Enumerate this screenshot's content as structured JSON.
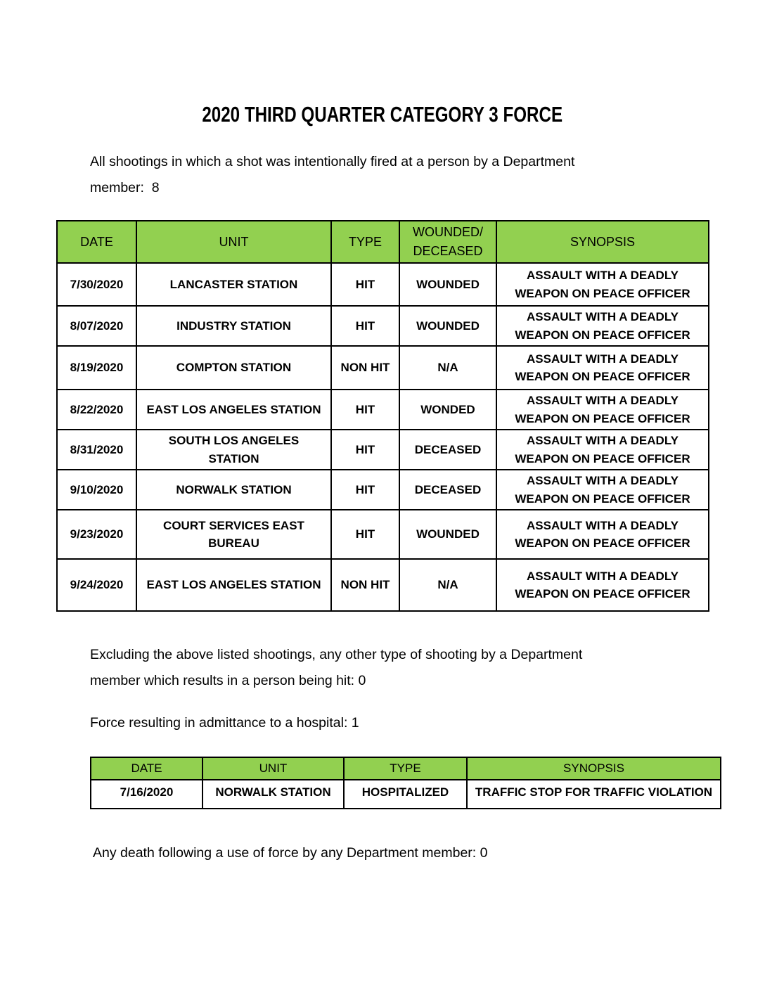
{
  "document": {
    "title": "2020 THIRD QUARTER CATEGORY 3 FORCE",
    "intro": "All shootings in which a shot was intentionally fired at a person by a Department\nmember:  8",
    "excluding_note": "Excluding the above listed shootings, any other type of shooting by a Department\nmember which results in a person being hit: 0",
    "hospital_note": "Force resulting in admittance to a hospital: 1",
    "death_note": "Any death following a use of force by any Department member: 0"
  },
  "colors": {
    "header_green": "#92D050",
    "table_border": "#000000",
    "text": "#000000",
    "page_background": "#FFFFFF"
  },
  "shootings_table": {
    "headers": [
      "DATE",
      "UNIT",
      "TYPE",
      "WOUNDED/\nDECEASED",
      "SYNOPSIS"
    ],
    "rows": [
      {
        "date": "7/30/2020",
        "unit": "LANCASTER STATION",
        "type": "HIT",
        "wounded": "WOUNDED",
        "synopsis": "ASSAULT WITH A DEADLY\nWEAPON ON PEACE OFFICER"
      },
      {
        "date": "8/07/2020",
        "unit": "INDUSTRY STATION",
        "type": "HIT",
        "wounded": "WOUNDED",
        "synopsis": "ASSAULT WITH A DEADLY\nWEAPON ON PEACE OFFICER"
      },
      {
        "date": "8/19/2020",
        "unit": "COMPTON STATION",
        "type": "NON HIT",
        "wounded": "N/A",
        "synopsis": "ASSAULT WITH A DEADLY\nWEAPON ON PEACE OFFICER"
      },
      {
        "date": "8/22/2020",
        "unit": "EAST LOS ANGELES STATION",
        "type": "HIT",
        "wounded": "WONDED",
        "synopsis": "ASSAULT WITH A DEADLY\nWEAPON ON PEACE OFFICER"
      },
      {
        "date": "8/31/2020",
        "unit": "SOUTH LOS ANGELES\nSTATION",
        "type": "HIT",
        "wounded": "DECEASED",
        "synopsis": "ASSAULT WITH A DEADLY\nWEAPON ON PEACE OFFICER"
      },
      {
        "date": "9/10/2020",
        "unit": "NORWALK STATION",
        "type": "HIT",
        "wounded": "DECEASED",
        "synopsis": "ASSAULT WITH A DEADLY\nWEAPON ON PEACE OFFICER"
      },
      {
        "date": "9/23/2020",
        "unit": "COURT SERVICES EAST\nBUREAU",
        "type": "HIT",
        "wounded": "WOUNDED",
        "synopsis": "ASSAULT WITH A DEADLY\nWEAPON ON PEACE OFFICER"
      },
      {
        "date": "9/24/2020",
        "unit": "EAST LOS ANGELES STATION",
        "type": "NON HIT",
        "wounded": "N/A",
        "synopsis": "ASSAULT WITH A DEADLY\nWEAPON ON PEACE OFFICER"
      }
    ]
  },
  "hospital_table": {
    "headers": [
      "DATE",
      "UNIT",
      "TYPE",
      "SYNOPSIS"
    ],
    "rows": [
      {
        "date": "7/16/2020",
        "unit": "NORWALK STATION",
        "type": "HOSPITALIZED",
        "synopsis": "TRAFFIC STOP FOR TRAFFIC VIOLATION"
      }
    ]
  }
}
